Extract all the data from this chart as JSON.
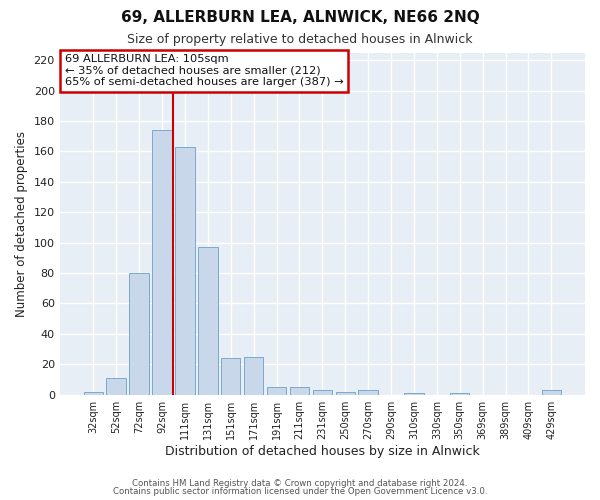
{
  "title": "69, ALLERBURN LEA, ALNWICK, NE66 2NQ",
  "subtitle": "Size of property relative to detached houses in Alnwick",
  "xlabel": "Distribution of detached houses by size in Alnwick",
  "ylabel": "Number of detached properties",
  "bar_labels": [
    "32sqm",
    "52sqm",
    "72sqm",
    "92sqm",
    "111sqm",
    "131sqm",
    "151sqm",
    "171sqm",
    "191sqm",
    "211sqm",
    "231sqm",
    "250sqm",
    "270sqm",
    "290sqm",
    "310sqm",
    "330sqm",
    "350sqm",
    "369sqm",
    "389sqm",
    "409sqm",
    "429sqm"
  ],
  "bar_values": [
    2,
    11,
    80,
    174,
    163,
    97,
    24,
    25,
    5,
    5,
    3,
    2,
    3,
    0,
    1,
    0,
    1,
    0,
    0,
    0,
    3
  ],
  "bar_color": "#c8d8ea",
  "bar_edgecolor": "#7aaaca",
  "ylim": [
    0,
    225
  ],
  "yticks": [
    0,
    20,
    40,
    60,
    80,
    100,
    120,
    140,
    160,
    180,
    200,
    220
  ],
  "vline_x": 3.5,
  "vline_color": "#cc0000",
  "annotation_title": "69 ALLERBURN LEA: 105sqm",
  "annotation_line1": "← 35% of detached houses are smaller (212)",
  "annotation_line2": "65% of semi-detached houses are larger (387) →",
  "annotation_box_color": "#cc0000",
  "fig_background": "#ffffff",
  "plot_background": "#e8eef5",
  "grid_color": "#ffffff",
  "footer_line1": "Contains HM Land Registry data © Crown copyright and database right 2024.",
  "footer_line2": "Contains public sector information licensed under the Open Government Licence v3.0."
}
